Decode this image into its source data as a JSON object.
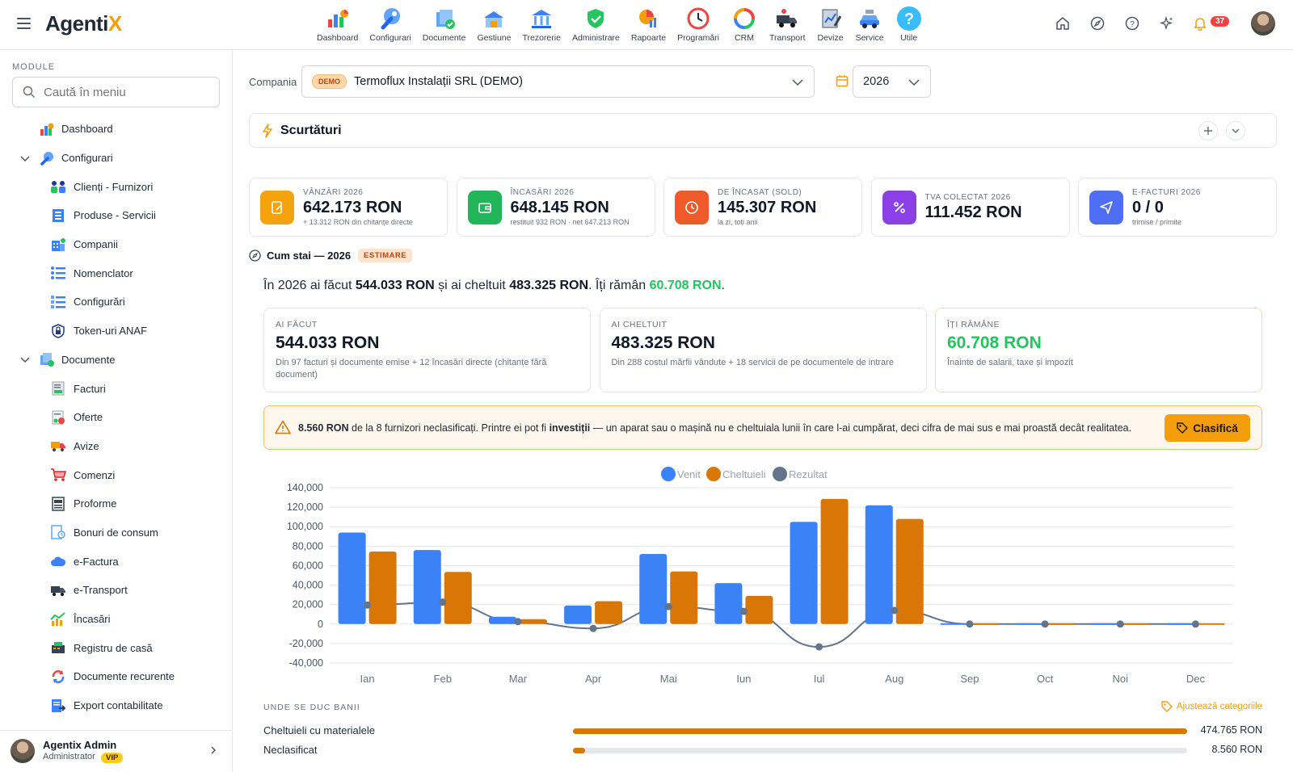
{
  "app": {
    "logo_main": "Agenti",
    "logo_accent": "X"
  },
  "modules": [
    {
      "label": "Dashboard",
      "icon": "dashboard-icon"
    },
    {
      "label": "Configurari",
      "icon": "wrench-icon"
    },
    {
      "label": "Documente",
      "icon": "documents-icon"
    },
    {
      "label": "Gestiune",
      "icon": "warehouse-icon"
    },
    {
      "label": "Trezorerie",
      "icon": "bank-icon"
    },
    {
      "label": "Administrare",
      "icon": "shield-icon"
    },
    {
      "label": "Rapoarte",
      "icon": "reports-icon"
    },
    {
      "label": "Programări",
      "icon": "clock-icon"
    },
    {
      "label": "CRM",
      "icon": "crm-icon"
    },
    {
      "label": "Transport",
      "icon": "truck-icon"
    },
    {
      "label": "Devize",
      "icon": "estimate-icon"
    },
    {
      "label": "Service",
      "icon": "car-icon"
    },
    {
      "label": "Utile",
      "icon": "help-icon"
    }
  ],
  "notifications_count": "37",
  "sidebar": {
    "title": "MODULE",
    "search_placeholder": "Caută în meniu",
    "items": [
      {
        "label": "Dashboard"
      },
      {
        "label": "Configurari"
      },
      {
        "label": "Clienți - Furnizori"
      },
      {
        "label": "Produse - Servicii"
      },
      {
        "label": "Companii"
      },
      {
        "label": "Nomenclator"
      },
      {
        "label": "Configurări"
      },
      {
        "label": "Token-uri ANAF"
      },
      {
        "label": "Documente"
      },
      {
        "label": "Facturi"
      },
      {
        "label": "Oferte"
      },
      {
        "label": "Avize"
      },
      {
        "label": "Comenzi"
      },
      {
        "label": "Proforme"
      },
      {
        "label": "Bonuri de consum"
      },
      {
        "label": "e-Factura"
      },
      {
        "label": "e-Transport"
      },
      {
        "label": "Încasări"
      },
      {
        "label": "Registru de casă"
      },
      {
        "label": "Documente recurente"
      },
      {
        "label": "Export contabilitate"
      }
    ],
    "user": {
      "name": "Agentix Admin",
      "role": "Administrator",
      "badge": "VIP"
    }
  },
  "filters": {
    "company_label": "Compania",
    "demo_badge": "DEMO",
    "company_value": "Termoflux Instalații SRL (DEMO)",
    "year_value": "2026"
  },
  "shortcuts": {
    "title": "Scurtături"
  },
  "kpis": [
    {
      "label": "VÂNZĂRI 2026",
      "value": "642.173 RON",
      "sub": "+ 13.312 RON din chitanțe directe",
      "color": "#f5a20b"
    },
    {
      "label": "ÎNCASĂRI 2026",
      "value": "648.145 RON",
      "sub": "restituit 932 RON · net 647.213 RON",
      "color": "#22b55a"
    },
    {
      "label": "DE ÎNCASAT (SOLD)",
      "value": "145.307 RON",
      "sub": "la zi, toți anii",
      "color": "#f05a2a"
    },
    {
      "label": "TVA COLECTAT 2026",
      "value": "111.452 RON",
      "sub": "",
      "color": "#8b3fe6"
    },
    {
      "label": "E-FACTURI 2026",
      "value": "0 / 0",
      "sub": "trimise / primite",
      "color": "#4f6ef5"
    }
  ],
  "cum_stai": {
    "title": "Cum stai — 2026",
    "badge": "ESTIMARE",
    "summary_pre": "În 2026 ai făcut ",
    "summary_made": "544.033 RON",
    "summary_mid": " și ai cheltuit ",
    "summary_spent": "483.325 RON",
    "summary_mid2": ". Îți rămân ",
    "summary_left": "60.708 RON",
    "summary_end": "."
  },
  "cards": [
    {
      "label": "AI FĂCUT",
      "value": "544.033 RON",
      "sub": "Din 97 facturi și documente emise + 12 încasări directe (chitanțe fără document)"
    },
    {
      "label": "AI CHELTUIT",
      "value": "483.325 RON",
      "sub": "Din 288 costul mărfii vândute + 18 servicii de pe documentele de intrare"
    },
    {
      "label": "ÎȚI RĂMÂNE",
      "value": "60.708 RON",
      "sub": "Înainte de salarii, taxe și impozit"
    }
  ],
  "warning": {
    "amount": "8.560 RON",
    "text1": " de la 8 furnizori neclasificați. Printre ei pot fi ",
    "bold": "investiții",
    "text2": " — un aparat sau o mașină nu e cheltuiala lunii în care l-ai cumpărat, deci cifra de mai sus e mai proastă decât realitatea.",
    "button": "Clasifică"
  },
  "chart_data": {
    "type": "bar",
    "categories": [
      "Ian",
      "Feb",
      "Mar",
      "Apr",
      "Mai",
      "Iun",
      "Iul",
      "Aug",
      "Sep",
      "Oct",
      "Noi",
      "Dec"
    ],
    "series": [
      {
        "name": "Venit",
        "type": "bar",
        "color": "#3b82f6",
        "values": [
          94000,
          76000,
          7500,
          19000,
          72000,
          42000,
          105000,
          122000,
          0,
          0,
          0,
          0
        ]
      },
      {
        "name": "Cheltuieli",
        "type": "bar",
        "color": "#d97706",
        "values": [
          74500,
          53500,
          5000,
          23500,
          54000,
          29000,
          128500,
          108000,
          0,
          0,
          0,
          0
        ]
      },
      {
        "name": "Rezultat",
        "type": "line",
        "color": "#64748b",
        "values": [
          19500,
          22500,
          2500,
          -4500,
          18000,
          13000,
          -23500,
          14000,
          0,
          0,
          0,
          0
        ]
      }
    ],
    "y_ticks": [
      "140,000",
      "120,000",
      "100,000",
      "80,000",
      "60,000",
      "40,000",
      "20,000",
      "0",
      "-20,000",
      "-40,000"
    ],
    "ylim": [
      -40000,
      140000
    ],
    "legend_position": "top-center",
    "grid": true
  },
  "spending": {
    "title": "UNDE SE DUC BANII",
    "adjust_label": "Ajustează categoriile",
    "rows": [
      {
        "label": "Cheltuieli cu materialele",
        "value": "474.765 RON",
        "fraction": 1.0
      },
      {
        "label": "Neclasificat",
        "value": "8.560 RON",
        "fraction": 0.018
      }
    ]
  }
}
